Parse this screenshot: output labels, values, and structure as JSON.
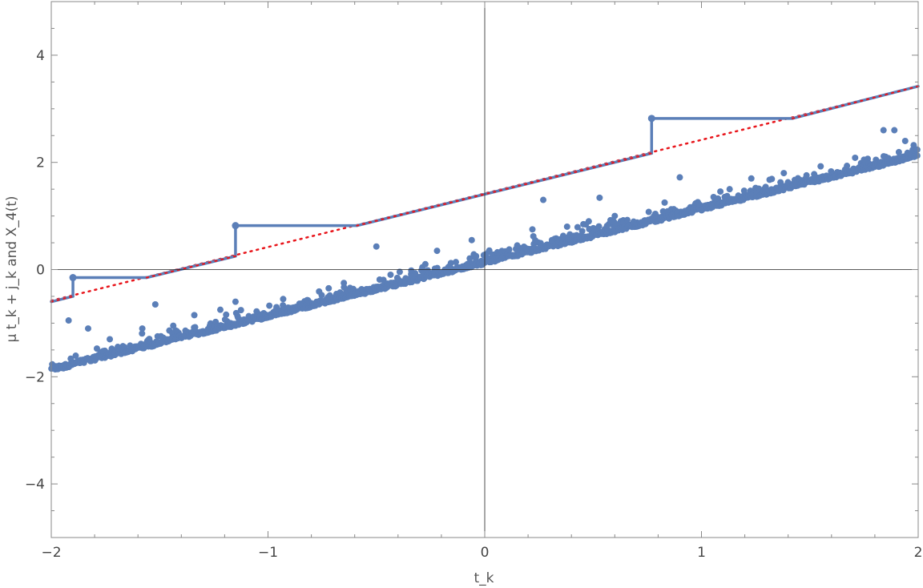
{
  "chart_data": {
    "type": "scatter",
    "title": "",
    "xlabel": "t_k",
    "ylabel": "μ t_k + j_k and X_4(t)",
    "xlim": [
      -2,
      2
    ],
    "ylim": [
      -5,
      5
    ],
    "x_ticks": [
      {
        "value": -2,
        "label": "−2"
      },
      {
        "value": -1,
        "label": "−1"
      },
      {
        "value": 0,
        "label": "0"
      },
      {
        "value": 1,
        "label": "1"
      },
      {
        "value": 2,
        "label": "2"
      }
    ],
    "y_ticks": [
      {
        "value": -4,
        "label": "−4"
      },
      {
        "value": -2,
        "label": "−2"
      },
      {
        "value": 0,
        "label": "0"
      },
      {
        "value": 2,
        "label": "2"
      },
      {
        "value": 4,
        "label": "4"
      }
    ],
    "grid": false,
    "frame": true,
    "axes_through_origin": true,
    "colors": {
      "points": "#5b7fb8",
      "step_line": "#5b7fb8",
      "dotted_line": "#e8151b",
      "axes": "#222222",
      "frame": "#888888"
    },
    "series": [
      {
        "kind": "points",
        "description_band": {
          "t_range": [
            -2,
            2
          ],
          "lower_line": {
            "slope": 1.0,
            "intercept": 0.1
          },
          "density": "dense band along lower line, sparser points above"
        },
        "outliers": [
          [
            -1.92,
            -0.95
          ],
          [
            -1.83,
            -1.1
          ],
          [
            -1.73,
            -1.3
          ],
          [
            -1.58,
            -1.1
          ],
          [
            -1.52,
            -0.65
          ],
          [
            -1.34,
            -0.85
          ],
          [
            -1.22,
            -0.75
          ],
          [
            -1.15,
            -0.6
          ],
          [
            -0.93,
            -0.55
          ],
          [
            -0.72,
            -0.35
          ],
          [
            -0.65,
            -0.25
          ],
          [
            -0.5,
            0.43
          ],
          [
            -0.22,
            0.35
          ],
          [
            -0.06,
            0.55
          ],
          [
            0.15,
            0.45
          ],
          [
            0.22,
            0.75
          ],
          [
            0.27,
            1.3
          ],
          [
            0.31,
            0.55
          ],
          [
            0.38,
            0.8
          ],
          [
            0.48,
            0.9
          ],
          [
            0.53,
            1.34
          ],
          [
            0.6,
            1.0
          ],
          [
            0.83,
            1.25
          ],
          [
            0.9,
            1.72
          ],
          [
            1.13,
            1.5
          ],
          [
            1.23,
            1.7
          ],
          [
            1.38,
            1.8
          ],
          [
            1.52,
            1.78
          ],
          [
            1.75,
            2.05
          ],
          [
            1.84,
            2.6
          ],
          [
            1.89,
            2.6
          ],
          [
            1.94,
            2.4
          ]
        ]
      },
      {
        "kind": "step_line",
        "segments": [
          {
            "from": [
              -2,
              -0.6
            ],
            "to": [
              -1.9,
              -0.5
            ]
          },
          {
            "from": [
              -1.9,
              -0.5
            ],
            "to": [
              -1.9,
              -0.15
            ]
          },
          {
            "from": [
              -1.9,
              -0.15
            ],
            "to": [
              -1.56,
              -0.15
            ]
          },
          {
            "from": [
              -1.56,
              -0.15
            ],
            "to": [
              -1.15,
              0.25
            ]
          },
          {
            "from": [
              -1.15,
              0.25
            ],
            "to": [
              -1.15,
              0.82
            ]
          },
          {
            "from": [
              -1.15,
              0.82
            ],
            "to": [
              -0.59,
              0.82
            ]
          },
          {
            "from": [
              -0.59,
              0.82
            ],
            "to": [
              0.77,
              2.17
            ]
          },
          {
            "from": [
              0.77,
              2.17
            ],
            "to": [
              0.77,
              2.82
            ]
          },
          {
            "from": [
              0.77,
              2.82
            ],
            "to": [
              1.42,
              2.82
            ]
          },
          {
            "from": [
              1.42,
              2.82
            ],
            "to": [
              2,
              3.42
            ]
          }
        ],
        "jump_markers": [
          [
            -1.9,
            -0.15
          ],
          [
            -1.15,
            0.82
          ],
          [
            0.77,
            2.82
          ]
        ]
      },
      {
        "kind": "dotted_line",
        "slope": 1.0,
        "intercept": 1.42,
        "x_range": [
          -2,
          2
        ]
      }
    ]
  }
}
